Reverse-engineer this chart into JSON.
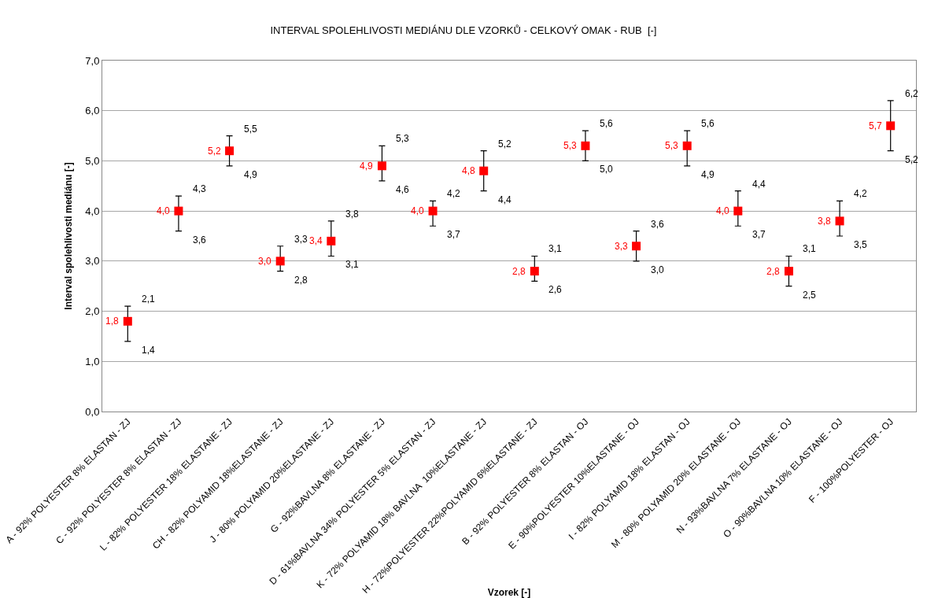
{
  "chart_data": {
    "type": "scatter",
    "title": "INTERVAL SPOLEHLIVOSTI MEDIÁNU DLE VZORKŮ - CELKOVÝ OMAK - RUB  [-]",
    "xlabel": "Vzorek [-]",
    "ylabel": "Interval spolehlivosti mediánu [-]",
    "categories": [
      "A - 92% POLYESTER 8% ELASTAN - ZJ",
      "C - 92% POLYESTER 8% ELASTAN - ZJ",
      "L - 82% POLYESTER 18% ELASTANE - ZJ",
      "CH - 82% POLYAMID 18%ELASTANE - ZJ",
      "J - 80% POLYAMID 20%ELASTANE - ZJ",
      "G - 92%BAVLNA 8% ELASTANE - ZJ",
      "D - 61%BAVLNA 34% POLYESTER 5% ELASTAN - ZJ",
      "K - 72% POLYAMID 18% BAVLNA  10%ELASTANE - ZJ",
      "H - 72%POLYESTER 22%POLYAMID 6%ELASTANE - ZJ",
      "B - 92% POLYESTER 8% ELASTAN - OJ",
      "E - 90%POLYESTER 10%ELASTANE - OJ",
      "I - 82% POLYAMID 18% ELASTAN - OJ",
      "M - 80% POLYAMID 20% ELASTANE - OJ",
      "N - 93%BAVLNA 7% ELASTANE - OJ",
      "O - 90%BAVLNA 10% ELASTANE - OJ",
      "F - 100%POLYESTER - OJ"
    ],
    "series": [
      {
        "color": "#ff0000",
        "values": [
          1.8,
          4.0,
          5.2,
          3.0,
          3.4,
          4.9,
          4.0,
          4.8,
          2.8,
          5.3,
          3.3,
          5.3,
          4.0,
          2.8,
          3.8,
          5.7
        ],
        "value_labels": [
          "1,8",
          "4,0",
          "5,2",
          "3,0",
          "3,4",
          "4,9",
          "4,0",
          "4,8",
          "2,8",
          "5,3",
          "3,3",
          "5,3",
          "4,0",
          "2,8",
          "3,8",
          "5,7"
        ],
        "errors": [
          [
            1.4,
            2.1
          ],
          [
            3.6,
            4.3
          ],
          [
            4.9,
            5.5
          ],
          [
            2.8,
            3.3
          ],
          [
            3.1,
            3.8
          ],
          [
            4.6,
            5.3
          ],
          [
            3.7,
            4.2
          ],
          [
            4.4,
            5.2
          ],
          [
            2.6,
            3.1
          ],
          [
            5.0,
            5.6
          ],
          [
            3.0,
            3.6
          ],
          [
            4.9,
            5.6
          ],
          [
            3.7,
            4.4
          ],
          [
            2.5,
            3.1
          ],
          [
            3.5,
            4.2
          ],
          [
            5.2,
            6.2
          ]
        ]
      }
    ],
    "annotations": [
      {
        "text": "1,4",
        "x": "A - 92% POLYESTER 8% ELASTAN - ZJ",
        "y": 1.4
      },
      {
        "text": "2,1",
        "x": "A - 92% POLYESTER 8% ELASTAN - ZJ",
        "y": 2.1
      },
      {
        "text": "3,6",
        "x": "C - 92% POLYESTER 8% ELASTAN - ZJ",
        "y": 3.6
      },
      {
        "text": "4,3",
        "x": "C - 92% POLYESTER 8% ELASTAN - ZJ",
        "y": 4.3
      },
      {
        "text": "4,9",
        "x": "L - 82% POLYESTER 18% ELASTANE - ZJ",
        "y": 4.9
      },
      {
        "text": "5,5",
        "x": "L - 82% POLYESTER 18% ELASTANE - ZJ",
        "y": 5.5
      },
      {
        "text": "2,8",
        "x": "CH - 82% POLYAMID 18%ELASTANE - ZJ",
        "y": 2.8
      },
      {
        "text": "3,3",
        "x": "CH - 82% POLYAMID 18%ELASTANE - ZJ",
        "y": 3.3
      },
      {
        "text": "3,1",
        "x": "J - 80% POLYAMID 20%ELASTANE - ZJ",
        "y": 3.1
      },
      {
        "text": "3,8",
        "x": "J - 80% POLYAMID 20%ELASTANE - ZJ",
        "y": 3.8
      },
      {
        "text": "4,6",
        "x": "G - 92%BAVLNA 8% ELASTANE - ZJ",
        "y": 4.6
      },
      {
        "text": "5,3",
        "x": "G - 92%BAVLNA 8% ELASTANE - ZJ",
        "y": 5.3
      },
      {
        "text": "3,7",
        "x": "D - 61%BAVLNA 34% POLYESTER 5% ELASTAN - ZJ",
        "y": 3.7
      },
      {
        "text": "4,2",
        "x": "D - 61%BAVLNA 34% POLYESTER 5% ELASTAN - ZJ",
        "y": 4.2
      },
      {
        "text": "4,4",
        "x": "K - 72% POLYAMID 18% BAVLNA  10%ELASTANE - ZJ",
        "y": 4.4
      },
      {
        "text": "5,2",
        "x": "K - 72% POLYAMID 18% BAVLNA  10%ELASTANE - ZJ",
        "y": 5.2
      },
      {
        "text": "2,6",
        "x": "H - 72%POLYESTER 22%POLYAMID 6%ELASTANE - ZJ",
        "y": 2.6
      },
      {
        "text": "3,1",
        "x": "H - 72%POLYESTER 22%POLYAMID 6%ELASTANE - ZJ",
        "y": 3.1
      },
      {
        "text": "5,0",
        "x": "B - 92% POLYESTER 8% ELASTAN - OJ",
        "y": 5.0
      },
      {
        "text": "5,6",
        "x": "B - 92% POLYESTER 8% ELASTAN - OJ",
        "y": 5.6
      },
      {
        "text": "3,0",
        "x": "E - 90%POLYESTER 10%ELASTANE - OJ",
        "y": 3.0
      },
      {
        "text": "3,6",
        "x": "E - 90%POLYESTER 10%ELASTANE - OJ",
        "y": 3.6
      },
      {
        "text": "4,9",
        "x": "I - 82% POLYAMID 18% ELASTAN - OJ",
        "y": 4.9
      },
      {
        "text": "5,6",
        "x": "I - 82% POLYAMID 18% ELASTAN - OJ",
        "y": 5.6
      },
      {
        "text": "3,7",
        "x": "M - 80% POLYAMID 20% ELASTANE - OJ",
        "y": 3.7
      },
      {
        "text": "4,4",
        "x": "M - 80% POLYAMID 20% ELASTANE - OJ",
        "y": 4.4
      },
      {
        "text": "2,5",
        "x": "N - 93%BAVLNA 7% ELASTANE - OJ",
        "y": 2.5
      },
      {
        "text": "3,1",
        "x": "N - 93%BAVLNA 7% ELASTANE - OJ",
        "y": 3.1
      },
      {
        "text": "3,5",
        "x": "O - 90%BAVLNA 10% ELASTANE - OJ",
        "y": 3.5
      },
      {
        "text": "4,2",
        "x": "O - 90%BAVLNA 10% ELASTANE - OJ",
        "y": 4.2
      },
      {
        "text": "5,2",
        "x": "F - 100%POLYESTER - OJ",
        "y": 5.2
      },
      {
        "text": "6,2",
        "x": "F - 100%POLYESTER - OJ",
        "y": 6.2
      }
    ],
    "marker": "square",
    "ylim": [
      0,
      7
    ],
    "yticks": [
      {
        "value": 0,
        "label": "0,0"
      },
      {
        "value": 1,
        "label": "1,0"
      },
      {
        "value": 2,
        "label": "2,0"
      },
      {
        "value": 3,
        "label": "3,0"
      },
      {
        "value": 4,
        "label": "4,0"
      },
      {
        "value": 5,
        "label": "5,0"
      },
      {
        "value": 6,
        "label": "6,0"
      },
      {
        "value": 7,
        "label": "7,0"
      }
    ],
    "grid": "y"
  }
}
